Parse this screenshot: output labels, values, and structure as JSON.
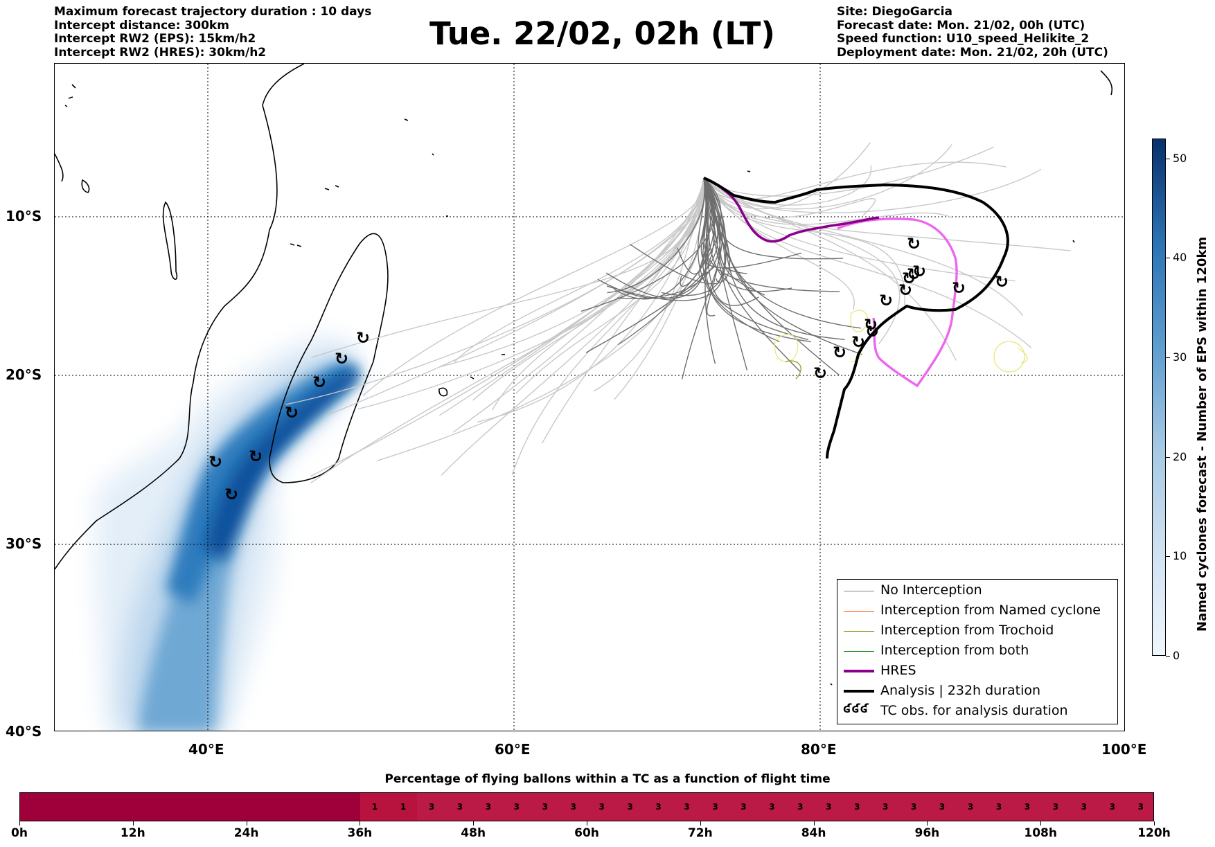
{
  "header_left": [
    "Maximum forecast trajectory duration : 10 days",
    "Intercept distance: 300km",
    "Intercept RW2 (EPS):  15km/h2",
    "Intercept RW2 (HRES): 30km/h2"
  ],
  "title": "Tue. 22/02, 02h (LT)",
  "header_right": [
    "Site: DiegoGarcia",
    "Forecast date: Mon. 21/02, 00h (UTC)",
    "Speed function: U10_speed_Helikite_2",
    "Deployment date: Mon. 21/02, 20h (UTC)"
  ],
  "map": {
    "lat_labels": [
      "10°S",
      "20°S",
      "30°S",
      "40°S"
    ],
    "lon_labels": [
      "40°E",
      "60°E",
      "80°E",
      "100°E"
    ],
    "extent": {
      "lon_min": 30,
      "lon_max": 100,
      "lat_top": 1,
      "lat_bottom": -40
    }
  },
  "legend": [
    {
      "label": "No Interception",
      "color": "#808080",
      "style": "thin"
    },
    {
      "label": "Interception from Named cyclone",
      "color": "#ff4500",
      "style": "thin"
    },
    {
      "label": "Interception from Trochoid",
      "color": "#808000",
      "style": "thin"
    },
    {
      "label": "Interception from both",
      "color": "#008000",
      "style": "thin"
    },
    {
      "label": "HRES",
      "color": "#8b008b",
      "style": "thick"
    },
    {
      "label": "Analysis | 232h duration",
      "color": "#000000",
      "style": "thick"
    },
    {
      "label": "TC obs. for analysis duration",
      "color": "#000000",
      "style": "symbols",
      "symbol": "ʛʛʛ"
    }
  ],
  "colorbar": {
    "title": "Named cyclones forecast - Number of EPS within 120km",
    "ticks": [
      "0",
      "10",
      "20",
      "30",
      "40",
      "50"
    ],
    "max": 52
  },
  "percentage_bar": {
    "title": "Percentage of flying ballons within a TC as a function of flight time",
    "time_labels": [
      "0h",
      "12h",
      "24h",
      "36h",
      "48h",
      "60h",
      "72h",
      "84h",
      "96h",
      "108h",
      "120h"
    ],
    "cells": [
      "",
      "",
      "",
      "",
      "",
      "",
      "",
      "",
      "",
      "",
      "",
      "",
      "1",
      "1",
      "3",
      "3",
      "3",
      "3",
      "3",
      "3",
      "3",
      "3",
      "3",
      "3",
      "3",
      "3",
      "3",
      "3",
      "3",
      "3",
      "3",
      "3",
      "3",
      "3",
      "3",
      "3",
      "3",
      "3",
      "3",
      "3"
    ],
    "colors": {
      "dark": "#a0003a",
      "mid": "#b8123f",
      "mid2": "#ba1a45"
    }
  },
  "colors": {
    "hres": "#8b008b",
    "analysis": "#000000",
    "pink": "#ee66ee",
    "eps_gray": "#6e6e6e",
    "eps_lightgray": "#c8c8c8",
    "yellow": "#e8e87a",
    "olive": "#9a9a30"
  }
}
